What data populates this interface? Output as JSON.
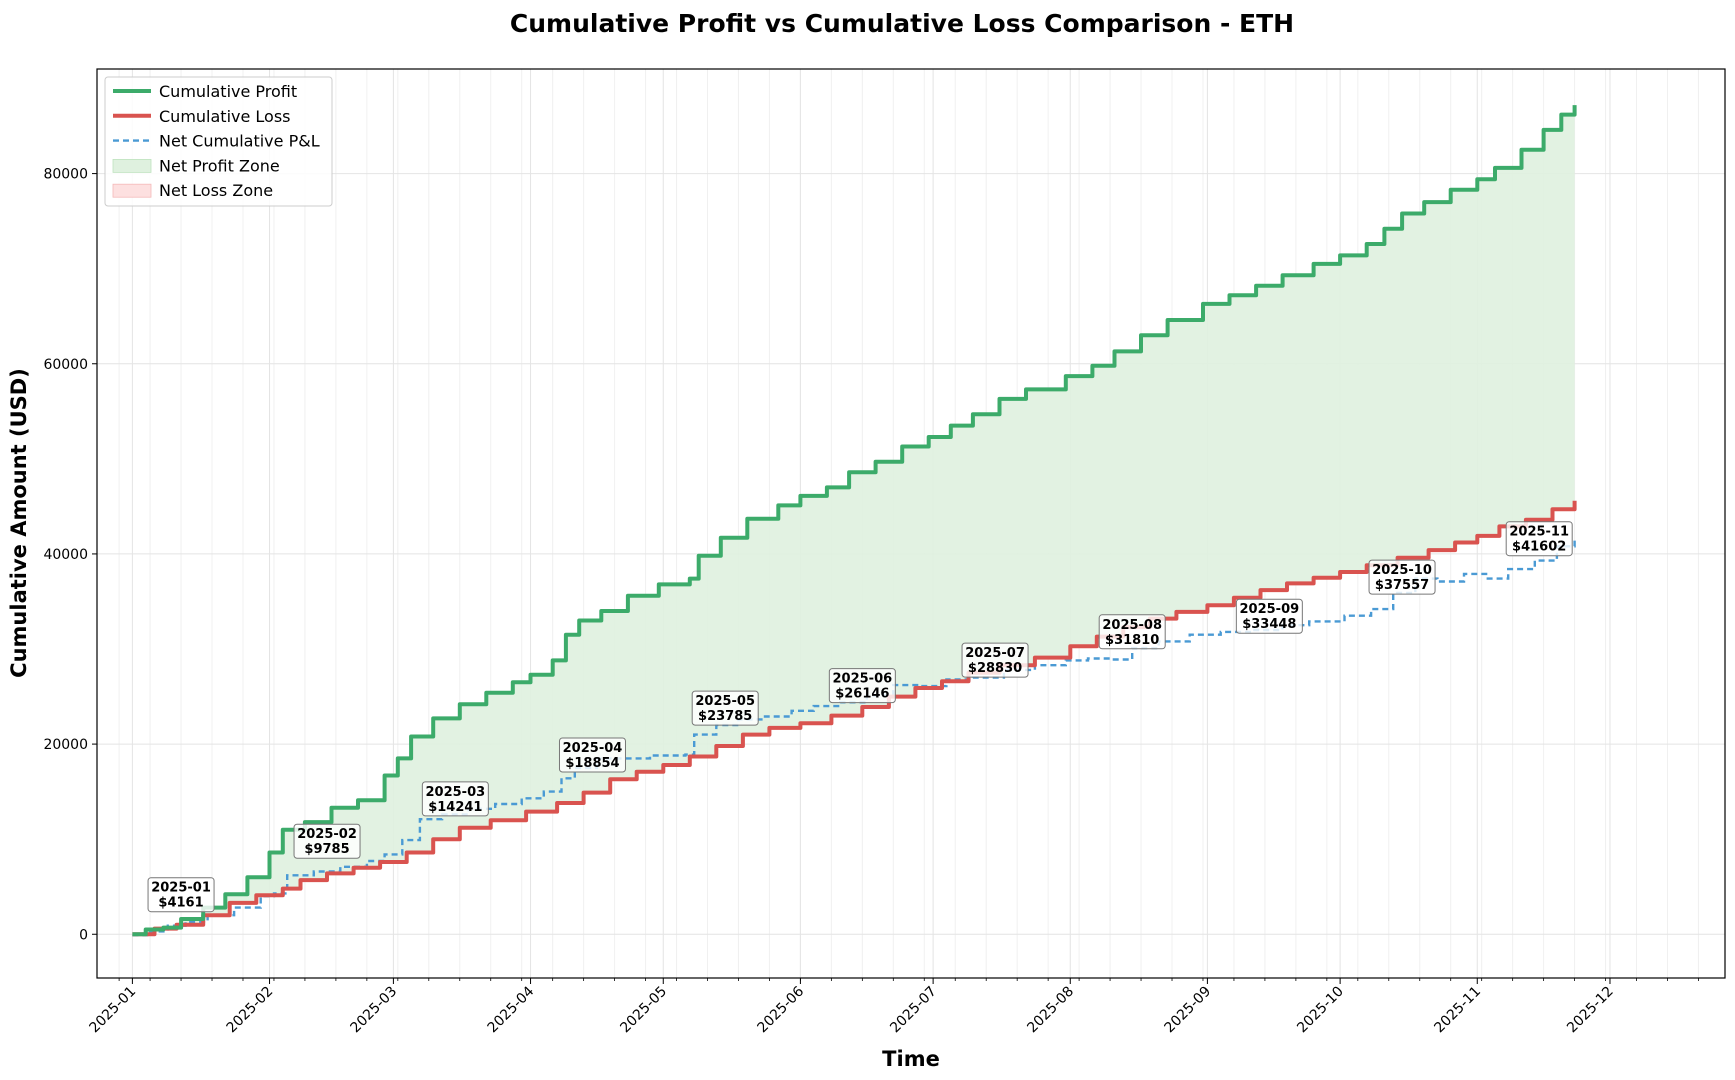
{
  "chart_data": {
    "type": "line",
    "title": "Cumulative Profit vs Cumulative Loss Comparison - ETH",
    "xlabel": "Time",
    "ylabel": "Cumulative Amount (USD)",
    "xlim": [
      "2024-12-24",
      "2025-12-27"
    ],
    "ylim": [
      -4600,
      91000
    ],
    "yticks": [
      0,
      20000,
      40000,
      60000,
      80000
    ],
    "ytick_labels": [
      "0",
      "20000",
      "40000",
      "60000",
      "80000"
    ],
    "xticks": [
      {
        "date": "2025-01-01",
        "label": "2025-01"
      },
      {
        "date": "2025-02-01",
        "label": "2025-02"
      },
      {
        "date": "2025-03-01",
        "label": "2025-03"
      },
      {
        "date": "2025-04-01",
        "label": "2025-04"
      },
      {
        "date": "2025-05-01",
        "label": "2025-05"
      },
      {
        "date": "2025-06-01",
        "label": "2025-06"
      },
      {
        "date": "2025-07-01",
        "label": "2025-07"
      },
      {
        "date": "2025-08-01",
        "label": "2025-08"
      },
      {
        "date": "2025-09-01",
        "label": "2025-09"
      },
      {
        "date": "2025-10-01",
        "label": "2025-10"
      },
      {
        "date": "2025-11-01",
        "label": "2025-11"
      },
      {
        "date": "2025-12-01",
        "label": "2025-12"
      }
    ],
    "grid": true,
    "legend_position": "top-left",
    "colors": {
      "profit": "#3cab6a",
      "loss": "#d9534f",
      "net": "#4a9ad4",
      "profit_zone": "#dff1df",
      "loss_zone": "#fde0e0"
    },
    "legend": [
      {
        "label": "Cumulative Profit",
        "kind": "line",
        "color": "#3cab6a"
      },
      {
        "label": "Cumulative Loss",
        "kind": "line",
        "color": "#d9534f"
      },
      {
        "label": "Net Cumulative P&L",
        "kind": "dashed",
        "color": "#4a9ad4"
      },
      {
        "label": "Net Profit Zone",
        "kind": "patch",
        "color": "#dff1df"
      },
      {
        "label": "Net Loss Zone",
        "kind": "patch",
        "color": "#fde0e0"
      }
    ],
    "series": [
      {
        "name": "Cumulative Profit",
        "points": [
          [
            "2025-01-01",
            0
          ],
          [
            "2025-01-04",
            500
          ],
          [
            "2025-01-08",
            700
          ],
          [
            "2025-01-12",
            1600
          ],
          [
            "2025-01-17",
            2800
          ],
          [
            "2025-01-22",
            4200
          ],
          [
            "2025-01-27",
            6000
          ],
          [
            "2025-02-01",
            8600
          ],
          [
            "2025-02-04",
            11000
          ],
          [
            "2025-02-09",
            11800
          ],
          [
            "2025-02-15",
            13300
          ],
          [
            "2025-02-21",
            14100
          ],
          [
            "2025-02-27",
            16700
          ],
          [
            "2025-03-02",
            18500
          ],
          [
            "2025-03-05",
            20800
          ],
          [
            "2025-03-10",
            22700
          ],
          [
            "2025-03-16",
            24200
          ],
          [
            "2025-03-22",
            25400
          ],
          [
            "2025-03-28",
            26500
          ],
          [
            "2025-04-01",
            27300
          ],
          [
            "2025-04-06",
            28800
          ],
          [
            "2025-04-09",
            31500
          ],
          [
            "2025-04-12",
            33000
          ],
          [
            "2025-04-17",
            34000
          ],
          [
            "2025-04-23",
            35600
          ],
          [
            "2025-04-30",
            36800
          ],
          [
            "2025-05-07",
            37400
          ],
          [
            "2025-05-09",
            39800
          ],
          [
            "2025-05-14",
            41700
          ],
          [
            "2025-05-20",
            43700
          ],
          [
            "2025-05-27",
            45100
          ],
          [
            "2025-06-01",
            46100
          ],
          [
            "2025-06-07",
            47000
          ],
          [
            "2025-06-12",
            48600
          ],
          [
            "2025-06-18",
            49700
          ],
          [
            "2025-06-24",
            51300
          ],
          [
            "2025-06-30",
            52300
          ],
          [
            "2025-07-05",
            53500
          ],
          [
            "2025-07-10",
            54700
          ],
          [
            "2025-07-16",
            56300
          ],
          [
            "2025-07-22",
            57300
          ],
          [
            "2025-07-31",
            58700
          ],
          [
            "2025-08-06",
            59800
          ],
          [
            "2025-08-11",
            61300
          ],
          [
            "2025-08-17",
            63000
          ],
          [
            "2025-08-23",
            64600
          ],
          [
            "2025-08-31",
            66300
          ],
          [
            "2025-09-06",
            67200
          ],
          [
            "2025-09-12",
            68200
          ],
          [
            "2025-09-18",
            69300
          ],
          [
            "2025-09-25",
            70500
          ],
          [
            "2025-10-01",
            71400
          ],
          [
            "2025-10-07",
            72600
          ],
          [
            "2025-10-11",
            74200
          ],
          [
            "2025-10-15",
            75800
          ],
          [
            "2025-10-20",
            77000
          ],
          [
            "2025-10-26",
            78300
          ],
          [
            "2025-11-01",
            79400
          ],
          [
            "2025-11-05",
            80600
          ],
          [
            "2025-11-11",
            82500
          ],
          [
            "2025-11-16",
            84600
          ],
          [
            "2025-11-20",
            86200
          ],
          [
            "2025-11-23",
            87200
          ]
        ]
      },
      {
        "name": "Cumulative Loss",
        "points": [
          [
            "2025-01-01",
            0
          ],
          [
            "2025-01-06",
            600
          ],
          [
            "2025-01-11",
            1000
          ],
          [
            "2025-01-17",
            2000
          ],
          [
            "2025-01-23",
            3300
          ],
          [
            "2025-01-29",
            4100
          ],
          [
            "2025-02-04",
            4800
          ],
          [
            "2025-02-08",
            5700
          ],
          [
            "2025-02-14",
            6400
          ],
          [
            "2025-02-20",
            7000
          ],
          [
            "2025-02-26",
            7600
          ],
          [
            "2025-03-04",
            8600
          ],
          [
            "2025-03-10",
            10000
          ],
          [
            "2025-03-16",
            11200
          ],
          [
            "2025-03-23",
            12000
          ],
          [
            "2025-03-31",
            12900
          ],
          [
            "2025-04-07",
            13800
          ],
          [
            "2025-04-13",
            14900
          ],
          [
            "2025-04-19",
            16300
          ],
          [
            "2025-04-25",
            17100
          ],
          [
            "2025-05-01",
            17800
          ],
          [
            "2025-05-07",
            18700
          ],
          [
            "2025-05-13",
            19800
          ],
          [
            "2025-05-19",
            21000
          ],
          [
            "2025-05-25",
            21700
          ],
          [
            "2025-06-01",
            22200
          ],
          [
            "2025-06-08",
            23000
          ],
          [
            "2025-06-15",
            23900
          ],
          [
            "2025-06-21",
            25000
          ],
          [
            "2025-06-27",
            25900
          ],
          [
            "2025-07-03",
            26600
          ],
          [
            "2025-07-09",
            27500
          ],
          [
            "2025-07-16",
            28300
          ],
          [
            "2025-07-24",
            29100
          ],
          [
            "2025-08-01",
            30300
          ],
          [
            "2025-08-07",
            31300
          ],
          [
            "2025-08-13",
            32300
          ],
          [
            "2025-08-19",
            33200
          ],
          [
            "2025-08-25",
            33900
          ],
          [
            "2025-09-01",
            34600
          ],
          [
            "2025-09-07",
            35400
          ],
          [
            "2025-09-13",
            36200
          ],
          [
            "2025-09-19",
            36900
          ],
          [
            "2025-09-25",
            37500
          ],
          [
            "2025-10-01",
            38100
          ],
          [
            "2025-10-07",
            38800
          ],
          [
            "2025-10-14",
            39600
          ],
          [
            "2025-10-21",
            40400
          ],
          [
            "2025-10-27",
            41200
          ],
          [
            "2025-11-01",
            41900
          ],
          [
            "2025-11-06",
            42900
          ],
          [
            "2025-11-12",
            43600
          ],
          [
            "2025-11-18",
            44700
          ],
          [
            "2025-11-23",
            45600
          ]
        ]
      },
      {
        "name": "Net Cumulative P&L",
        "points": [
          [
            "2025-01-01",
            -100
          ],
          [
            "2025-01-05",
            300
          ],
          [
            "2025-01-09",
            900
          ],
          [
            "2025-01-13",
            1300
          ],
          [
            "2025-01-18",
            2000
          ],
          [
            "2025-01-24",
            2800
          ],
          [
            "2025-01-30",
            4000
          ],
          [
            "2025-02-02",
            4300
          ],
          [
            "2025-02-05",
            6200
          ],
          [
            "2025-02-11",
            6600
          ],
          [
            "2025-02-17",
            7100
          ],
          [
            "2025-02-23",
            7700
          ],
          [
            "2025-02-27",
            8400
          ],
          [
            "2025-03-03",
            9900
          ],
          [
            "2025-03-07",
            12100
          ],
          [
            "2025-03-12",
            12600
          ],
          [
            "2025-03-18",
            13200
          ],
          [
            "2025-03-24",
            13700
          ],
          [
            "2025-03-30",
            14300
          ],
          [
            "2025-04-04",
            15000
          ],
          [
            "2025-04-08",
            16400
          ],
          [
            "2025-04-11",
            17500
          ],
          [
            "2025-04-16",
            18500
          ],
          [
            "2025-04-22",
            18500
          ],
          [
            "2025-04-28",
            18800
          ],
          [
            "2025-05-06",
            18900
          ],
          [
            "2025-05-08",
            21000
          ],
          [
            "2025-05-13",
            22000
          ],
          [
            "2025-05-18",
            22600
          ],
          [
            "2025-05-24",
            22900
          ],
          [
            "2025-05-30",
            23500
          ],
          [
            "2025-06-04",
            24000
          ],
          [
            "2025-06-10",
            24400
          ],
          [
            "2025-06-16",
            25100
          ],
          [
            "2025-06-22",
            26200
          ],
          [
            "2025-06-28",
            26100
          ],
          [
            "2025-07-04",
            26800
          ],
          [
            "2025-07-10",
            27000
          ],
          [
            "2025-07-17",
            27800
          ],
          [
            "2025-07-24",
            28300
          ],
          [
            "2025-07-31",
            28800
          ],
          [
            "2025-08-05",
            29000
          ],
          [
            "2025-08-10",
            28900
          ],
          [
            "2025-08-15",
            30100
          ],
          [
            "2025-08-21",
            30800
          ],
          [
            "2025-08-28",
            31500
          ],
          [
            "2025-09-04",
            31800
          ],
          [
            "2025-09-11",
            32000
          ],
          [
            "2025-09-18",
            32500
          ],
          [
            "2025-09-24",
            32900
          ],
          [
            "2025-10-02",
            33500
          ],
          [
            "2025-10-08",
            34200
          ],
          [
            "2025-10-13",
            35900
          ],
          [
            "2025-10-18",
            37400
          ],
          [
            "2025-10-23",
            37100
          ],
          [
            "2025-10-29",
            37900
          ],
          [
            "2025-11-03",
            37400
          ],
          [
            "2025-11-08",
            38400
          ],
          [
            "2025-11-14",
            39300
          ],
          [
            "2025-11-19",
            40800
          ],
          [
            "2025-11-23",
            41602
          ]
        ]
      }
    ],
    "annotations": [
      {
        "month": "2025-01",
        "value": "$4161",
        "date": "2025-01-12",
        "y": 4161
      },
      {
        "month": "2025-02",
        "value": "$9785",
        "date": "2025-02-14",
        "y": 9785
      },
      {
        "month": "2025-03",
        "value": "$14241",
        "date": "2025-03-15",
        "y": 14241
      },
      {
        "month": "2025-04",
        "value": "$18854",
        "date": "2025-04-15",
        "y": 18854
      },
      {
        "month": "2025-05",
        "value": "$23785",
        "date": "2025-05-15",
        "y": 23785
      },
      {
        "month": "2025-06",
        "value": "$26146",
        "date": "2025-06-15",
        "y": 26146
      },
      {
        "month": "2025-07",
        "value": "$28830",
        "date": "2025-07-15",
        "y": 28830
      },
      {
        "month": "2025-08",
        "value": "$31810",
        "date": "2025-08-15",
        "y": 31810
      },
      {
        "month": "2025-09",
        "value": "$33448",
        "date": "2025-09-15",
        "y": 33448
      },
      {
        "month": "2025-10",
        "value": "$37557",
        "date": "2025-10-15",
        "y": 37557
      },
      {
        "month": "2025-11",
        "value": "$41602",
        "date": "2025-11-15",
        "y": 41602
      }
    ]
  }
}
